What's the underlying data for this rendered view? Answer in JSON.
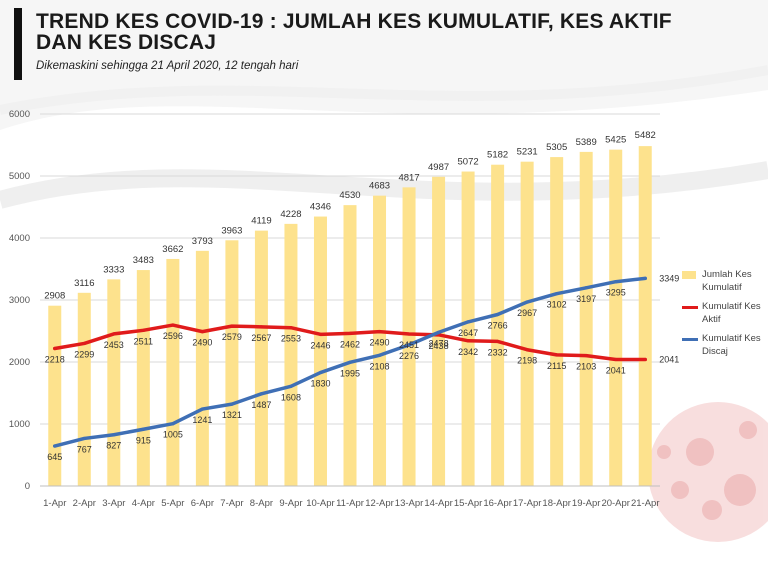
{
  "header": {
    "title": "TREND KES COVID-19 : JUMLAH KES KUMULATIF, KES AKTIF DAN KES DISCAJ",
    "subtitle": "Dikemaskini sehingga 21 April 2020, 12 tengah hari"
  },
  "colors": {
    "bar": "#FDE28D",
    "active_line": "#E01B1B",
    "discharged_line": "#3F6FB5",
    "virus_accent": "#E25A5A"
  },
  "chart_data": {
    "type": "bar",
    "categories": [
      "1-Apr",
      "2-Apr",
      "3-Apr",
      "4-Apr",
      "5-Apr",
      "6-Apr",
      "7-Apr",
      "8-Apr",
      "9-Apr",
      "10-Apr",
      "11-Apr",
      "12-Apr",
      "13-Apr",
      "14-Apr",
      "15-Apr",
      "16-Apr",
      "17-Apr",
      "18-Apr",
      "19-Apr",
      "20-Apr",
      "21-Apr"
    ],
    "series": [
      {
        "name": "Jumlah Kes Kumulatif",
        "type": "bar",
        "values": [
          2908,
          3116,
          3333,
          3483,
          3662,
          3793,
          3963,
          4119,
          4228,
          4346,
          4530,
          4683,
          4817,
          4987,
          5072,
          5182,
          5231,
          5305,
          5389,
          5425,
          5482
        ]
      },
      {
        "name": "Kumulatif Kes Aktif",
        "type": "line",
        "values": [
          2218,
          2299,
          2453,
          2511,
          2596,
          2490,
          2579,
          2567,
          2553,
          2446,
          2462,
          2490,
          2451,
          2438,
          2342,
          2332,
          2198,
          2115,
          2103,
          2041,
          2041
        ]
      },
      {
        "name": "Kumulatif Kes Discaj",
        "type": "line",
        "values": [
          645,
          767,
          827,
          915,
          1005,
          1241,
          1321,
          1487,
          1608,
          1830,
          1995,
          2108,
          2276,
          2478,
          2647,
          2766,
          2967,
          3102,
          3197,
          3295,
          3349
        ]
      }
    ],
    "yticks": [
      "0",
      "1000",
      "2000",
      "3000",
      "4000",
      "5000",
      "6000"
    ],
    "ylim": [
      0,
      6000
    ],
    "grid": true,
    "legend": "right"
  }
}
